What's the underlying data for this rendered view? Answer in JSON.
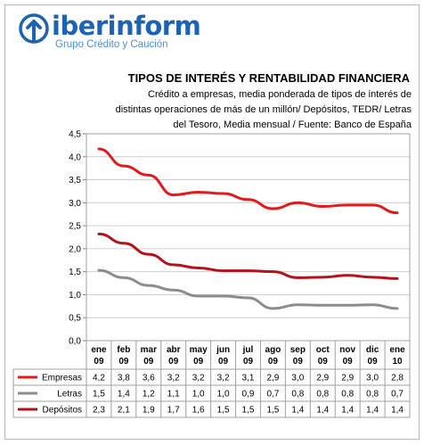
{
  "header": {
    "brand": "iberinform",
    "brand_subtitle": "Grupo Crédito y Caución"
  },
  "chart_data": {
    "type": "line",
    "title": "TIPOS DE INTERÉS Y RENTABILIDAD FINANCIERA",
    "subtitle_lines": [
      "Crédito a empresas, media ponderada de tipos de interés de",
      "distintas operaciones de más de un millón/ Depósitos, TEDR/  Letras",
      "del Tesoro, Media mensual / Fuente: Banco de España"
    ],
    "categories": [
      [
        "ene",
        "09"
      ],
      [
        "feb",
        "09"
      ],
      [
        "mar",
        "09"
      ],
      [
        "abr",
        "09"
      ],
      [
        "may",
        "09"
      ],
      [
        "jun",
        "09"
      ],
      [
        "jul",
        "09"
      ],
      [
        "ago",
        "09"
      ],
      [
        "sep",
        "09"
      ],
      [
        "oct",
        "09"
      ],
      [
        "nov",
        "09"
      ],
      [
        "dic",
        "09"
      ],
      [
        "ene",
        "10"
      ]
    ],
    "ylim": [
      0,
      4.5
    ],
    "yticks": [
      "0,0",
      "0,5",
      "1,0",
      "1,5",
      "2,0",
      "2,5",
      "3,0",
      "3,5",
      "4,0",
      "4,5"
    ],
    "grid": "horizontal",
    "legend": "data-table",
    "series": [
      {
        "name": "Empresas",
        "color": "#e31b1b",
        "values": [
          4.17,
          3.8,
          3.6,
          3.17,
          3.23,
          3.2,
          3.07,
          2.87,
          3.0,
          2.92,
          2.95,
          2.95,
          2.78
        ],
        "table": [
          "4,2",
          "3,8",
          "3,6",
          "3,2",
          "3,2",
          "3,2",
          "3,1",
          "2,9",
          "3,0",
          "2,9",
          "2,9",
          "3,0",
          "2,8"
        ]
      },
      {
        "name": "Letras",
        "color": "#8c8c8c",
        "values": [
          1.53,
          1.37,
          1.2,
          1.1,
          0.97,
          0.97,
          0.93,
          0.7,
          0.78,
          0.77,
          0.77,
          0.78,
          0.7
        ],
        "table": [
          "1,5",
          "1,4",
          "1,2",
          "1,1",
          "1,0",
          "1,0",
          "0,9",
          "0,7",
          "0,8",
          "0,8",
          "0,8",
          "0,8",
          "0,7"
        ]
      },
      {
        "name": "Depósitos",
        "color": "#b5121b",
        "values": [
          2.32,
          2.12,
          1.88,
          1.65,
          1.58,
          1.52,
          1.52,
          1.5,
          1.37,
          1.38,
          1.42,
          1.38,
          1.35
        ],
        "table": [
          "2,3",
          "2,1",
          "1,9",
          "1,7",
          "1,6",
          "1,5",
          "1,5",
          "1,5",
          "1,4",
          "1,4",
          "1,4",
          "1,4",
          "1,4"
        ]
      }
    ]
  }
}
